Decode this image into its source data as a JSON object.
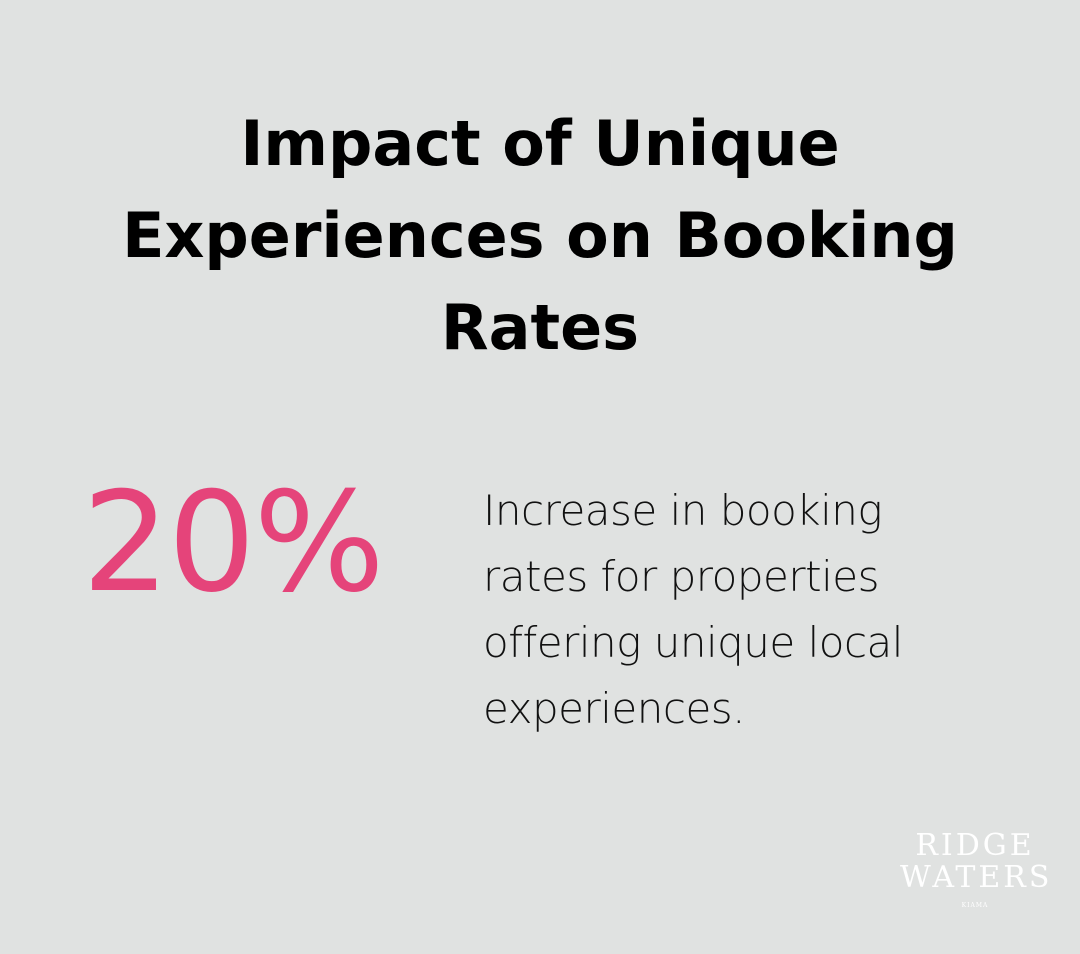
{
  "title": "Impact of Unique Experiences on Booking Rates",
  "stat": {
    "value": "20%",
    "description": "Increase in booking rates for properties offering unique local experiences.",
    "color": "#e5447a"
  },
  "logo": {
    "line1": "RIDGE",
    "line2": "WATERS",
    "line3": "KIAMA"
  },
  "background": "#e0e2e1"
}
